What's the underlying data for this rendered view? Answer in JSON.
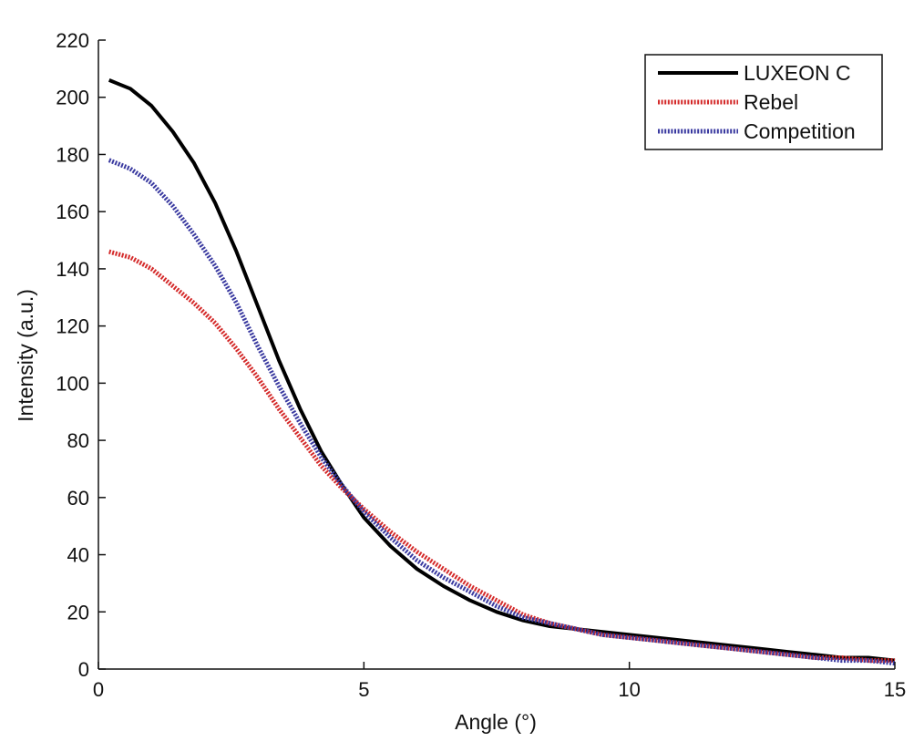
{
  "chart_data": {
    "type": "line",
    "title": "",
    "xlabel": "Angle (°)",
    "ylabel": "Intensity (a.u.)",
    "xlim": [
      0,
      15
    ],
    "ylim": [
      0,
      220
    ],
    "xticks": [
      0,
      5,
      10,
      15
    ],
    "yticks": [
      0,
      20,
      40,
      60,
      80,
      100,
      120,
      140,
      160,
      180,
      200,
      220
    ],
    "grid": false,
    "legend_position": "top-right",
    "series": [
      {
        "name": "LUXEON C",
        "color": "#000000",
        "style": "solid",
        "x": [
          0.2,
          0.6,
          1.0,
          1.4,
          1.8,
          2.2,
          2.6,
          3.0,
          3.4,
          3.8,
          4.2,
          4.6,
          5.0,
          5.5,
          6.0,
          6.5,
          7.0,
          7.5,
          8.0,
          8.5,
          9.0,
          9.5,
          10.0,
          10.5,
          11.0,
          11.5,
          12.0,
          12.5,
          13.0,
          13.5,
          14.0,
          14.5,
          15.0
        ],
        "y": [
          206,
          203,
          197,
          188,
          177,
          163,
          146,
          127,
          108,
          91,
          76,
          64,
          53,
          43,
          35,
          29,
          24,
          20,
          17,
          15,
          14,
          13,
          12,
          11,
          10,
          9,
          8,
          7,
          6,
          5,
          4,
          4,
          3
        ]
      },
      {
        "name": "Rebel",
        "color": "#d42a2a",
        "style": "dotted",
        "x": [
          0.2,
          0.6,
          1.0,
          1.4,
          1.8,
          2.2,
          2.6,
          3.0,
          3.4,
          3.8,
          4.2,
          4.6,
          5.0,
          5.5,
          6.0,
          6.5,
          7.0,
          7.5,
          8.0,
          8.5,
          9.0,
          9.5,
          10.0,
          10.5,
          11.0,
          11.5,
          12.0,
          12.5,
          13.0,
          13.5,
          14.0,
          14.5,
          15.0
        ],
        "y": [
          146,
          144,
          140,
          134,
          128,
          121,
          112,
          102,
          91,
          81,
          71,
          63,
          56,
          48,
          41,
          35,
          29,
          24,
          19,
          16,
          14,
          12,
          11,
          10,
          9,
          8,
          7,
          6,
          5,
          4,
          4,
          3,
          3
        ]
      },
      {
        "name": "Competition",
        "color": "#3a3aa0",
        "style": "dotted",
        "x": [
          0.2,
          0.6,
          1.0,
          1.4,
          1.8,
          2.2,
          2.6,
          3.0,
          3.4,
          3.8,
          4.2,
          4.6,
          5.0,
          5.5,
          6.0,
          6.5,
          7.0,
          7.5,
          8.0,
          8.5,
          9.0,
          9.5,
          10.0,
          10.5,
          11.0,
          11.5,
          12.0,
          12.5,
          13.0,
          13.5,
          14.0,
          14.5,
          15.0
        ],
        "y": [
          178,
          175,
          170,
          162,
          152,
          141,
          128,
          113,
          99,
          86,
          74,
          64,
          55,
          46,
          38,
          32,
          27,
          22,
          18,
          16,
          14,
          12,
          11,
          10,
          9,
          8,
          7,
          6,
          5,
          4,
          3,
          3,
          2
        ]
      }
    ]
  }
}
